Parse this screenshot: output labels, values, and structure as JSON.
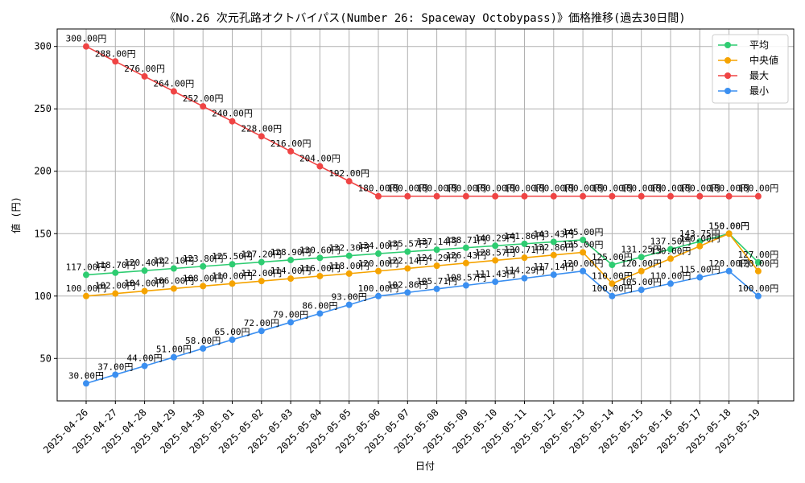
{
  "chart_data": {
    "type": "line",
    "title": "《No.26 次元孔路オクトバイパス(Number 26: Spaceway Octobypass)》価格推移(過去30日間)",
    "xlabel": "日付",
    "ylabel": "値 (円)",
    "ylim": [
      16,
      314
    ],
    "yticks": [
      50,
      100,
      150,
      200,
      250,
      300
    ],
    "grid": true,
    "legend_position": "top-right",
    "value_suffix": "円",
    "categories": [
      "2025-04-26",
      "2025-04-27",
      "2025-04-28",
      "2025-04-29",
      "2025-04-30",
      "2025-05-01",
      "2025-05-02",
      "2025-05-03",
      "2025-05-04",
      "2025-05-05",
      "2025-05-06",
      "2025-05-07",
      "2025-05-08",
      "2025-05-09",
      "2025-05-10",
      "2025-05-11",
      "2025-05-12",
      "2025-05-13",
      "2025-05-14",
      "2025-05-15",
      "2025-05-16",
      "2025-05-17",
      "2025-05-18",
      "2025-05-19"
    ],
    "series": [
      {
        "name": "平均",
        "color": "#2ecc71",
        "values": [
          117.0,
          118.7,
          120.4,
          122.1,
          123.8,
          125.5,
          127.2,
          128.9,
          130.6,
          132.3,
          134.0,
          135.57,
          137.14,
          138.71,
          140.29,
          141.86,
          143.43,
          145.0,
          125.0,
          131.25,
          137.5,
          143.75,
          150.0,
          127.0
        ]
      },
      {
        "name": "中央値",
        "color": "#f5a300",
        "values": [
          100.0,
          102.0,
          104.0,
          106.0,
          108.0,
          110.0,
          112.0,
          114.0,
          116.0,
          118.0,
          120.0,
          122.14,
          124.29,
          126.43,
          128.57,
          130.71,
          132.86,
          135.0,
          110.0,
          120.0,
          130.0,
          140.0,
          150.0,
          120.0
        ]
      },
      {
        "name": "最大",
        "color": "#ef4444",
        "values": [
          300.0,
          288.0,
          276.0,
          264.0,
          252.0,
          240.0,
          228.0,
          216.0,
          204.0,
          192.0,
          180.0,
          180.0,
          180.0,
          180.0,
          180.0,
          180.0,
          180.0,
          180.0,
          180.0,
          180.0,
          180.0,
          180.0,
          180.0,
          180.0
        ]
      },
      {
        "name": "最小",
        "color": "#3b8ff0",
        "values": [
          30.0,
          37.0,
          44.0,
          51.0,
          58.0,
          65.0,
          72.0,
          79.0,
          86.0,
          93.0,
          100.0,
          102.86,
          105.71,
          108.57,
          111.43,
          114.29,
          117.14,
          120.0,
          100.0,
          105.0,
          110.0,
          115.0,
          120.0,
          100.0
        ]
      }
    ]
  }
}
